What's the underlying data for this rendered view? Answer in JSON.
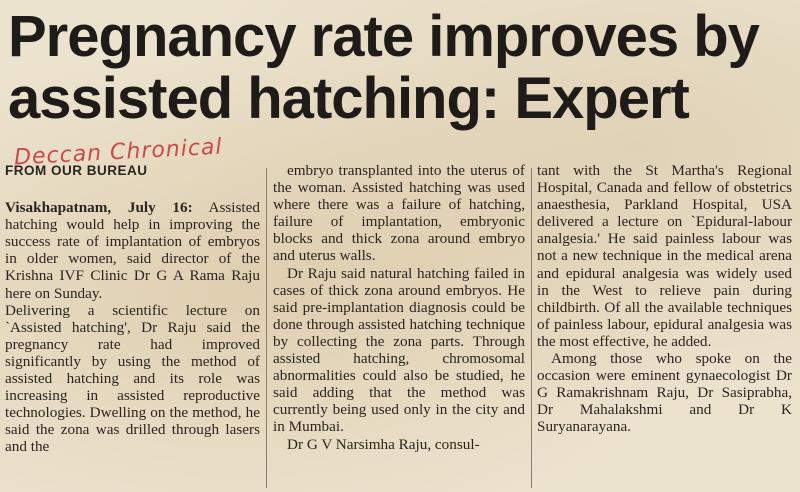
{
  "headline": {
    "line1": "Pregnancy rate improves by",
    "line2": "assisted hatching: Expert"
  },
  "handwritten_note": "Deccan Chronical",
  "byline": "FROM OUR BUREAU",
  "dateline": "Visakhapatnam, July 16:",
  "col1": {
    "p1": "Assisted hatching would help in improving the success rate of implantation of embryos in older women, said director of the Krishna IVF Clinic Dr G A Rama Raju here on Sunday.",
    "p2": "Delivering a scientific lecture on `Assisted hatching', Dr Raju said the pregnancy rate had improved significantly by using the method of assisted hatching and its role was increasing in assisted reproductive technologies. Dwelling on the method, he said the zona was drilled through lasers and the"
  },
  "col2": {
    "p1": "embryo transplanted into the uterus of the woman. Assisted hatching was used where there was a failure of hatching, failure of implantation, embryonic blocks and thick zona around embryo and uterus walls.",
    "p2": "Dr Raju said natural hatching failed in cases of thick zona around embryos. He said pre-implantation diagnosis could be done through assisted hatching technique by collecting the zona parts. Through assisted hatching, chromosomal abnormalities could also be studied, he said adding that the method was currently being used only in the city and in Mumbai.",
    "p3": "Dr G V Narsimha Raju, consul-"
  },
  "col3": {
    "p1": "tant with the St Martha's Regional Hospital, Canada and fellow of obstetrics anaesthesia, Parkland Hospital, USA delivered a lecture on `Epidural-labour analgesia.' He said painless labour was not a new technique in the medical arena and epidural analgesia was widely used in the West to relieve pain during childbirth. Of all the available techniques of painless labour, epidural analgesia was the most effective, he added.",
    "p2": "Among those who spoke on the occasion were eminent gynaecologist Dr G Ramakrishnam Raju, Dr Sasiprabha, Dr Mahalakshmi and Dr K Suryanarayana."
  }
}
